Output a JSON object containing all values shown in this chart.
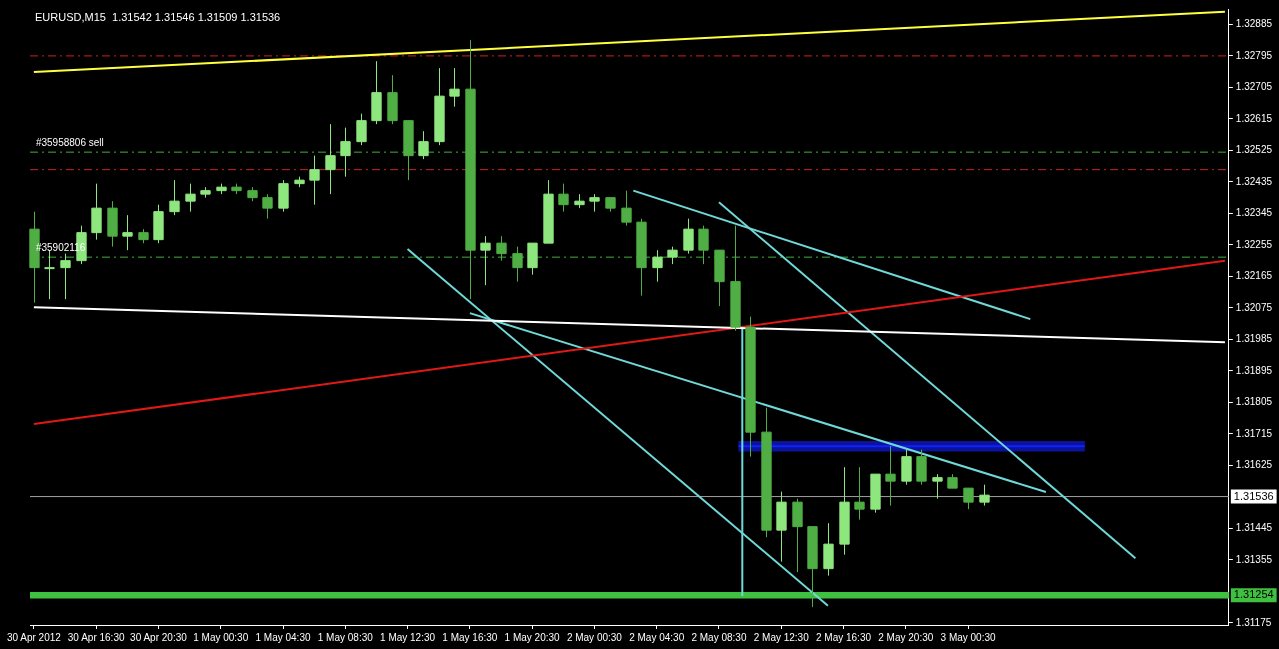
{
  "chart_data": {
    "type": "candlestick",
    "title": "EURUSD,M15  1.31542 1.31546 1.31509 1.31536",
    "colors": [
      "#4fae44",
      "#8ee67e",
      "#8ee67e",
      "#8ee67e",
      "#8ee67e",
      "#4fae44",
      "#8ee67e",
      "#4fae44",
      "#8ee67e",
      "#8ee67e",
      "#8ee67e",
      "#8ee67e",
      "#8ee67e",
      "#4fae44",
      "#4fae44",
      "#4fae44",
      "#8ee67e",
      "#8ee67e",
      "#8ee67e",
      "#8ee67e",
      "#8ee67e",
      "#8ee67e",
      "#8ee67e",
      "#4fae44",
      "#4fae44",
      "#8ee67e",
      "#8ee67e",
      "#8ee67e",
      "#4fae44",
      "#8ee67e",
      "#4fae44",
      "#4fae44",
      "#8ee67e",
      "#8ee67e",
      "#4fae44",
      "#8ee67e",
      "#8ee67e",
      "#4fae44",
      "#4fae44",
      "#4fae44",
      "#8ee67e",
      "#8ee67e",
      "#8ee67e",
      "#4fae44",
      "#4fae44",
      "#4fae44",
      "#4fae44",
      "#4fae44",
      "#8ee67e",
      "#4fae44",
      "#4fae44",
      "#8ee67e",
      "#8ee67e",
      "#4fae44",
      "#8ee67e",
      "#4fae44",
      "#8ee67e",
      "#4fae44",
      "#8ee67e",
      "#4fae44",
      "#4fae44",
      "#8ee67e"
    ],
    "x": [
      "2012-04-30T12:30",
      "2012-04-30T13:30",
      "2012-04-30T14:30",
      "2012-04-30T15:30",
      "2012-04-30T16:30",
      "2012-04-30T17:30",
      "2012-04-30T18:30",
      "2012-04-30T19:30",
      "2012-04-30T20:30",
      "2012-04-30T21:30",
      "2012-04-30T22:30",
      "2012-04-30T23:30",
      "2012-05-01T00:30",
      "2012-05-01T01:30",
      "2012-05-01T02:30",
      "2012-05-01T03:30",
      "2012-05-01T04:30",
      "2012-05-01T05:30",
      "2012-05-01T06:30",
      "2012-05-01T07:30",
      "2012-05-01T08:30",
      "2012-05-01T09:30",
      "2012-05-01T10:30",
      "2012-05-01T11:30",
      "2012-05-01T12:30",
      "2012-05-01T13:30",
      "2012-05-01T14:30",
      "2012-05-01T15:30",
      "2012-05-01T16:30",
      "2012-05-01T17:30",
      "2012-05-01T18:30",
      "2012-05-01T19:30",
      "2012-05-01T20:30",
      "2012-05-01T21:30",
      "2012-05-01T22:30",
      "2012-05-01T23:30",
      "2012-05-02T00:30",
      "2012-05-02T01:30",
      "2012-05-02T02:30",
      "2012-05-02T03:30",
      "2012-05-02T04:30",
      "2012-05-02T05:30",
      "2012-05-02T06:30",
      "2012-05-02T07:30",
      "2012-05-02T08:30",
      "2012-05-02T09:30",
      "2012-05-02T10:30",
      "2012-05-02T11:30",
      "2012-05-02T12:30",
      "2012-05-02T13:30",
      "2012-05-02T14:30",
      "2012-05-02T15:30",
      "2012-05-02T16:30",
      "2012-05-02T17:30",
      "2012-05-02T18:30",
      "2012-05-02T19:30",
      "2012-05-02T20:30",
      "2012-05-02T21:30",
      "2012-05-02T22:30",
      "2012-05-02T23:30",
      "2012-05-03T00:30",
      "2012-05-03T01:30"
    ],
    "ohlc": [
      [
        1.323,
        1.3235,
        1.3209,
        1.3219
      ],
      [
        1.3219,
        1.3224,
        1.321,
        1.3219
      ],
      [
        1.3219,
        1.3223,
        1.321,
        1.3221
      ],
      [
        1.3221,
        1.3231,
        1.322,
        1.3229
      ],
      [
        1.3229,
        1.3243,
        1.3227,
        1.3236
      ],
      [
        1.3236,
        1.3238,
        1.3225,
        1.3228
      ],
      [
        1.3228,
        1.3234,
        1.3224,
        1.3229
      ],
      [
        1.3229,
        1.323,
        1.3226,
        1.3227
      ],
      [
        1.3227,
        1.3237,
        1.3226,
        1.3235
      ],
      [
        1.3235,
        1.3244,
        1.3234,
        1.3238
      ],
      [
        1.3238,
        1.3243,
        1.3235,
        1.324
      ],
      [
        1.324,
        1.3242,
        1.3239,
        1.3241
      ],
      [
        1.3241,
        1.3243,
        1.324,
        1.3242
      ],
      [
        1.3242,
        1.3243,
        1.324,
        1.3241
      ],
      [
        1.3241,
        1.3242,
        1.3238,
        1.3239
      ],
      [
        1.3239,
        1.324,
        1.3233,
        1.3236
      ],
      [
        1.3236,
        1.3244,
        1.3235,
        1.3243
      ],
      [
        1.3243,
        1.3245,
        1.3242,
        1.3244
      ],
      [
        1.3244,
        1.3251,
        1.3237,
        1.3247
      ],
      [
        1.3247,
        1.326,
        1.324,
        1.3251
      ],
      [
        1.3251,
        1.3259,
        1.3245,
        1.3255
      ],
      [
        1.3255,
        1.3263,
        1.3254,
        1.3261
      ],
      [
        1.3261,
        1.3278,
        1.326,
        1.3269
      ],
      [
        1.3269,
        1.3274,
        1.326,
        1.3261
      ],
      [
        1.3261,
        1.3261,
        1.3244,
        1.3251
      ],
      [
        1.3251,
        1.3258,
        1.325,
        1.3255
      ],
      [
        1.3255,
        1.3276,
        1.3254,
        1.3268
      ],
      [
        1.3268,
        1.3276,
        1.3265,
        1.327
      ],
      [
        1.327,
        1.3284,
        1.321,
        1.3224
      ],
      [
        1.3224,
        1.3228,
        1.3214,
        1.3226
      ],
      [
        1.3226,
        1.3228,
        1.3221,
        1.3223
      ],
      [
        1.3223,
        1.3225,
        1.3215,
        1.3219
      ],
      [
        1.3219,
        1.3226,
        1.3217,
        1.3226
      ],
      [
        1.3226,
        1.3244,
        1.3226,
        1.324
      ],
      [
        1.324,
        1.3243,
        1.3235,
        1.3237
      ],
      [
        1.3237,
        1.324,
        1.3236,
        1.3238
      ],
      [
        1.3238,
        1.324,
        1.3235,
        1.3239
      ],
      [
        1.3239,
        1.3239,
        1.3235,
        1.3236
      ],
      [
        1.3236,
        1.3241,
        1.3231,
        1.3232
      ],
      [
        1.3232,
        1.3233,
        1.3211,
        1.3219
      ],
      [
        1.3219,
        1.3224,
        1.3215,
        1.3222
      ],
      [
        1.3222,
        1.3225,
        1.322,
        1.3224
      ],
      [
        1.3224,
        1.3233,
        1.3223,
        1.323
      ],
      [
        1.323,
        1.3231,
        1.322,
        1.3224
      ],
      [
        1.3224,
        1.3224,
        1.3208,
        1.3215
      ],
      [
        1.3215,
        1.3231,
        1.3201,
        1.3202
      ],
      [
        1.3202,
        1.3205,
        1.3165,
        1.3172
      ],
      [
        1.3172,
        1.3179,
        1.3142,
        1.3144
      ],
      [
        1.3144,
        1.3155,
        1.3135,
        1.3152
      ],
      [
        1.3152,
        1.3153,
        1.3132,
        1.3145
      ],
      [
        1.3145,
        1.3145,
        1.3122,
        1.3133
      ],
      [
        1.3133,
        1.3146,
        1.3131,
        1.314
      ],
      [
        1.314,
        1.3162,
        1.3137,
        1.3152
      ],
      [
        1.3152,
        1.3162,
        1.3147,
        1.315
      ],
      [
        1.315,
        1.316,
        1.3149,
        1.316
      ],
      [
        1.316,
        1.3168,
        1.3151,
        1.3158
      ],
      [
        1.3158,
        1.3167,
        1.3157,
        1.3165
      ],
      [
        1.3165,
        1.3167,
        1.3157,
        1.3158
      ],
      [
        1.3158,
        1.316,
        1.3153,
        1.3159
      ],
      [
        1.3159,
        1.316,
        1.3156,
        1.3156
      ],
      [
        1.3156,
        1.3156,
        1.315,
        1.3152
      ],
      [
        1.3152,
        1.3157,
        1.3151,
        1.3154
      ]
    ],
    "series": [
      {
        "type": "line",
        "color": "#ffff40",
        "x": [
          "2012-04-30T12:30",
          "2012-05-03T17:00"
        ],
        "values": [
          1.32749,
          1.32921
        ]
      },
      {
        "type": "line",
        "color": "#ffffff",
        "x": [
          "2012-04-30T12:30",
          "2012-05-03T17:00"
        ],
        "values": [
          1.32077,
          1.31977
        ]
      },
      {
        "type": "line",
        "color": "#e01818",
        "x": [
          "2012-04-30T12:30",
          "2012-05-03T17:00"
        ],
        "values": [
          1.31743,
          1.3221
        ]
      },
      {
        "type": "line",
        "color": "#70d8d8",
        "x": [
          "2012-05-01T12:30",
          "2012-05-02T15:30"
        ],
        "values": [
          1.32243,
          1.31224
        ]
      },
      {
        "type": "line",
        "color": "#70d8d8",
        "x": [
          "2012-05-01T16:30",
          "2012-05-03T05:30"
        ],
        "values": [
          1.3206,
          1.31549
        ]
      },
      {
        "type": "line",
        "color": "#70d8d8",
        "x": [
          "2012-05-02T03:00",
          "2012-05-03T04:30"
        ],
        "values": [
          1.3241,
          1.32043
        ]
      },
      {
        "type": "line",
        "color": "#70d8d8",
        "x": [
          "2012-05-02T08:30",
          "2012-05-03T11:15"
        ],
        "values": [
          1.32377,
          1.3136
        ]
      },
      {
        "type": "line",
        "color": "#70d8d8",
        "x": [
          "2012-05-02T10:00",
          "2012-05-02T10:00"
        ],
        "values": [
          1.32021,
          1.31254
        ]
      },
      {
        "type": "line",
        "color": "#1020ff",
        "x": [
          "2012-05-02T09:45",
          "2012-05-03T08:00"
        ],
        "values": [
          1.3168,
          1.3168
        ],
        "lower": [
          1.31665,
          1.31665
        ],
        "upper": [
          1.31695,
          1.31695
        ]
      }
    ],
    "ref_lines": [
      {
        "axis": "y",
        "value": 1.32795,
        "color": "#d02020",
        "line_style": "dashed"
      },
      {
        "axis": "y",
        "value": 1.3252,
        "color": "#40b040",
        "line_style": "dashed"
      },
      {
        "axis": "y",
        "value": 1.3247,
        "color": "#d02020",
        "line_style": "dashed"
      },
      {
        "axis": "y",
        "value": 1.3222,
        "color": "#40b040",
        "line_style": "dashed"
      },
      {
        "axis": "y",
        "value": 1.31536,
        "label": "1.31536",
        "color": "#a0a0a0",
        "line_style": "solid"
      }
    ],
    "annotations": [
      {
        "text": "#35958806 sell",
        "x": "2012-04-30T12:30",
        "y": 1.3252
      },
      {
        "text": "#35902116",
        "x": "2012-04-30T12:30",
        "y": 1.3222
      }
    ],
    "bands": [
      {
        "axis": "y",
        "from": 1.31245,
        "to": 1.31263,
        "label": "1.31254",
        "color": "#40c040"
      }
    ],
    "xlim": [
      "2012-04-30T12:15",
      "2012-05-03T17:15"
    ],
    "xticks": [
      {
        "value": "2012-04-30T12:30",
        "label": "30 Apr 2012"
      },
      {
        "value": "2012-04-30T16:30",
        "label": "30 Apr 16:30"
      },
      {
        "value": "2012-04-30T20:30",
        "label": "30 Apr 20:30"
      },
      {
        "value": "2012-05-01T00:30",
        "label": "1 May 00:30"
      },
      {
        "value": "2012-05-01T04:30",
        "label": "1 May 04:30"
      },
      {
        "value": "2012-05-01T08:30",
        "label": "1 May 08:30"
      },
      {
        "value": "2012-05-01T12:30",
        "label": "1 May 12:30"
      },
      {
        "value": "2012-05-01T16:30",
        "label": "1 May 16:30"
      },
      {
        "value": "2012-05-01T20:30",
        "label": "1 May 20:30"
      },
      {
        "value": "2012-05-02T00:30",
        "label": "2 May 00:30"
      },
      {
        "value": "2012-05-02T04:30",
        "label": "2 May 04:30"
      },
      {
        "value": "2012-05-02T08:30",
        "label": "2 May 08:30"
      },
      {
        "value": "2012-05-02T12:30",
        "label": "2 May 12:30"
      },
      {
        "value": "2012-05-02T16:30",
        "label": "2 May 16:30"
      },
      {
        "value": "2012-05-02T20:30",
        "label": "2 May 20:30"
      },
      {
        "value": "2012-05-03T00:30",
        "label": "3 May 00:30"
      }
    ],
    "ylim": [
      1.31169,
      1.32929
    ],
    "yticks": [
      1.31175,
      1.31355,
      1.31445,
      1.31625,
      1.31715,
      1.31805,
      1.31895,
      1.31985,
      1.32075,
      1.32165,
      1.32255,
      1.32345,
      1.32435,
      1.32525,
      1.32615,
      1.32705,
      1.32795,
      1.32885
    ],
    "grid": false,
    "legend": false
  }
}
